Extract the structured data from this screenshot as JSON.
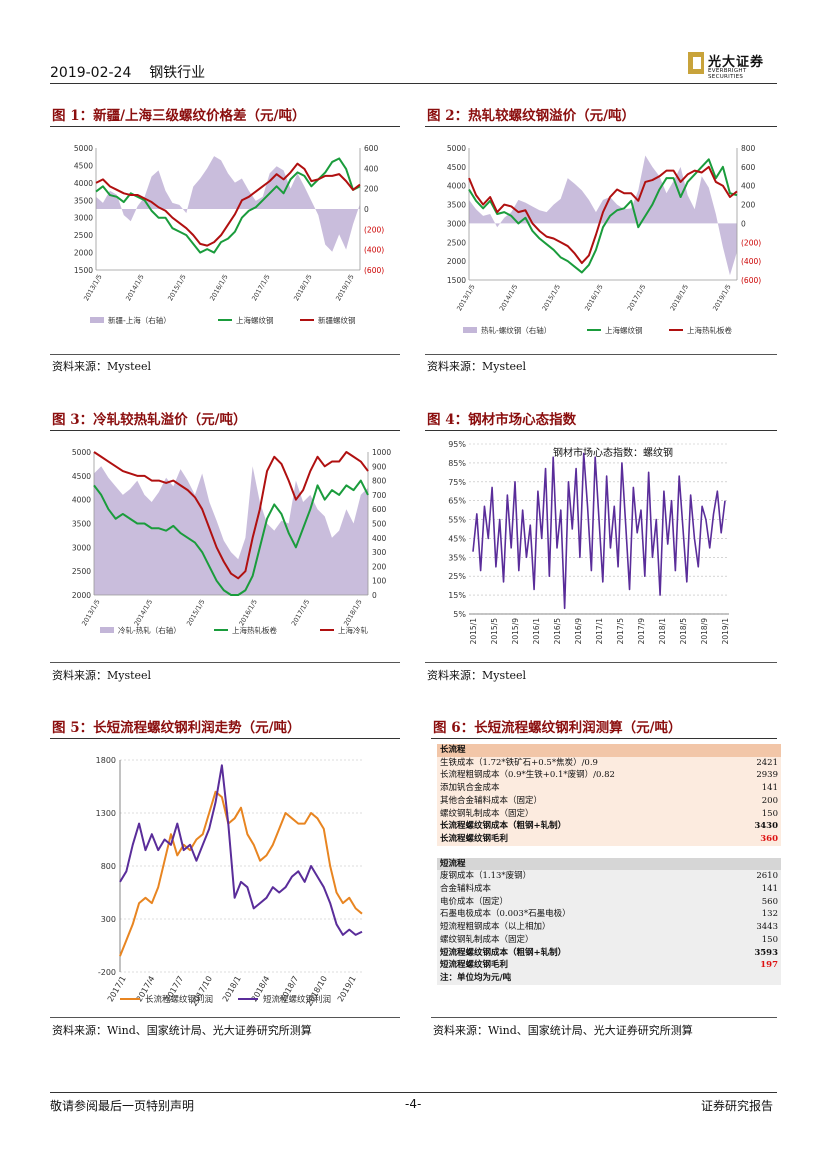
{
  "header": {
    "date": "2019-02-24",
    "industry": "钢铁行业",
    "logo_cn": "光大证券",
    "logo_en": "EVERBRIGHT SECURITIES"
  },
  "colors": {
    "title_red": "#8b0e0e",
    "bar_lavender": "#c3b6d8",
    "line_green": "#1a9c3c",
    "line_darkred": "#b01010",
    "line_orange": "#e88521",
    "line_purple": "#5a2d9a"
  },
  "figures": {
    "fig1": {
      "title": "图 1：新疆/上海三级螺纹价格差（元/吨）",
      "source": "资料来源：Mysteel",
      "chart_data": {
        "type": "line",
        "left_axis_ticks": [
          "5000",
          "4500",
          "4000",
          "3500",
          "3000",
          "2500",
          "2000",
          "1500"
        ],
        "right_axis_ticks": [
          "600",
          "400",
          "200",
          "0",
          "(200)",
          "(400)",
          "(600)"
        ],
        "x_ticks": [
          "2013/1/5",
          "2014/1/5",
          "2015/1/5",
          "2016/1/5",
          "2017/1/5",
          "2018/1/5",
          "2019/1/5"
        ],
        "ylim_left": [
          1500,
          5000
        ],
        "ylim_right": [
          -600,
          600
        ],
        "legend": [
          "新疆-上海（右轴）",
          "上海螺纹钢",
          "新疆螺纹钢"
        ],
        "series": [
          {
            "name": "新疆-上海（右轴）",
            "type": "area",
            "axis": "right",
            "values": [
              120,
              60,
              180,
              140,
              -60,
              -120,
              30,
              120,
              320,
              380,
              180,
              60,
              40,
              -40,
              220,
              300,
              400,
              520,
              480,
              350,
              260,
              300,
              180,
              80,
              120,
              350,
              420,
              380,
              200,
              350,
              220,
              80,
              -60,
              -350,
              -420,
              -250,
              -400,
              -150,
              50
            ]
          },
          {
            "name": "上海螺纹钢",
            "type": "line",
            "axis": "left",
            "values": [
              3750,
              3900,
              3650,
              3600,
              3450,
              3700,
              3600,
              3500,
              3200,
              3000,
              3000,
              2700,
              2600,
              2500,
              2250,
              2000,
              2100,
              2000,
              2300,
              2400,
              2600,
              3000,
              3200,
              3300,
              3500,
              3700,
              3900,
              3700,
              4100,
              4300,
              4200,
              3900,
              4100,
              4300,
              4600,
              4700,
              4400,
              3800,
              3900
            ]
          },
          {
            "name": "新疆螺纹钢",
            "type": "line",
            "axis": "left",
            "values": [
              4000,
              4100,
              3900,
              3800,
              3700,
              3650,
              3650,
              3550,
              3450,
              3300,
              3200,
              3000,
              2850,
              2700,
              2500,
              2250,
              2200,
              2300,
              2500,
              2800,
              3100,
              3500,
              3600,
              3750,
              3900,
              4050,
              4250,
              4100,
              4300,
              4550,
              4400,
              4050,
              4100,
              4200,
              4200,
              4250,
              4050,
              3800,
              3950
            ]
          }
        ]
      }
    },
    "fig2": {
      "title": "图 2：热轧较螺纹钢溢价（元/吨）",
      "source": "资料来源：Mysteel",
      "chart_data": {
        "type": "line",
        "left_axis_ticks": [
          "5000",
          "4500",
          "4000",
          "3500",
          "3000",
          "2500",
          "2000",
          "1500"
        ],
        "right_axis_ticks": [
          "800",
          "600",
          "400",
          "200",
          "0",
          "(200)",
          "(400)",
          "(600)"
        ],
        "x_ticks": [
          "2013/1/5",
          "2014/1/5",
          "2015/1/5",
          "2016/1/5",
          "2017/1/5",
          "2018/1/5",
          "2019/1/5"
        ],
        "ylim_left": [
          1500,
          5000
        ],
        "ylim_right": [
          -600,
          800
        ],
        "legend": [
          "热轧-螺纹钢（右轴）",
          "上海螺纹钢",
          "上海热轧板卷"
        ],
        "series": [
          {
            "name": "热轧-螺纹钢（右轴）",
            "type": "area",
            "axis": "right",
            "values": [
              250,
              150,
              80,
              100,
              -40,
              60,
              120,
              250,
              220,
              180,
              140,
              120,
              200,
              260,
              480,
              420,
              350,
              250,
              120,
              250,
              280,
              200,
              150,
              160,
              350,
              720,
              600,
              500,
              320,
              450,
              600,
              300,
              150,
              500,
              380,
              100,
              -250,
              -550,
              -300
            ]
          },
          {
            "name": "上海螺纹钢",
            "type": "line",
            "axis": "left",
            "values": [
              3900,
              3600,
              3400,
              3600,
              3250,
              3300,
              3200,
              3000,
              3150,
              2800,
              2600,
              2450,
              2300,
              2100,
              2000,
              1850,
              1700,
              1900,
              2300,
              2900,
              3200,
              3350,
              3400,
              3600,
              2900,
              3200,
              3500,
              3900,
              4200,
              4200,
              3700,
              4100,
              4300,
              4500,
              4700,
              4200,
              4500,
              3800,
              3750
            ]
          },
          {
            "name": "上海热轧板卷",
            "type": "line",
            "axis": "left",
            "values": [
              4200,
              3750,
              3500,
              3700,
              3300,
              3500,
              3450,
              3300,
              3350,
              3000,
              2800,
              2650,
              2600,
              2500,
              2400,
              2200,
              1950,
              2150,
              2700,
              3300,
              3700,
              3900,
              3800,
              3800,
              3600,
              4100,
              4150,
              4250,
              4400,
              4400,
              4100,
              4300,
              4400,
              4350,
              4500,
              4100,
              4000,
              3700,
              3850
            ]
          }
        ]
      }
    },
    "fig3": {
      "title": "图 3：冷轧较热轧溢价（元/吨）",
      "source": "资料来源：Mysteel",
      "chart_data": {
        "type": "line",
        "left_axis_ticks": [
          "5000",
          "4500",
          "4000",
          "3500",
          "3000",
          "2500",
          "2000"
        ],
        "right_axis_ticks": [
          "1000",
          "900",
          "800",
          "700",
          "600",
          "500",
          "400",
          "300",
          "200",
          "100",
          "0"
        ],
        "x_ticks": [
          "2013/1/5",
          "2014/1/5",
          "2015/1/5",
          "2016/1/5",
          "2017/1/5",
          "2018/1/5"
        ],
        "ylim_left": [
          2000,
          5000
        ],
        "ylim_right": [
          0,
          1000
        ],
        "legend": [
          "冷轧-热轧（右轴）",
          "上海热轧板卷",
          "上海冷轧"
        ],
        "series": [
          {
            "name": "冷轧-热轧（右轴）",
            "type": "area",
            "axis": "right",
            "values": [
              850,
              900,
              820,
              760,
              700,
              740,
              800,
              700,
              650,
              720,
              820,
              760,
              880,
              800,
              700,
              850,
              650,
              520,
              380,
              300,
              250,
              400,
              900,
              650,
              500,
              450,
              520,
              500,
              800,
              650,
              700,
              600,
              550,
              400,
              450,
              600,
              500,
              700,
              750
            ]
          },
          {
            "name": "上海热轧板卷",
            "type": "line",
            "axis": "left",
            "values": [
              4300,
              4100,
              3800,
              3600,
              3700,
              3600,
              3500,
              3500,
              3400,
              3400,
              3350,
              3450,
              3300,
              3200,
              3100,
              2900,
              2600,
              2300,
              2100,
              2000,
              2000,
              2100,
              2400,
              3000,
              3600,
              3900,
              3700,
              3300,
              3000,
              3400,
              3800,
              4300,
              4000,
              4200,
              4100,
              4300,
              4200,
              4400,
              4100
            ]
          },
          {
            "name": "上海冷轧",
            "type": "line",
            "axis": "left",
            "values": [
              5000,
              4900,
              4800,
              4700,
              4600,
              4550,
              4500,
              4500,
              4400,
              4400,
              4350,
              4400,
              4300,
              4200,
              4050,
              3800,
              3400,
              3000,
              2700,
              2450,
              2350,
              2500,
              3200,
              3800,
              4600,
              4900,
              4750,
              4400,
              4000,
              4200,
              4600,
              4900,
              4700,
              4800,
              4800,
              5000,
              4900,
              4800,
              4600
            ]
          }
        ]
      }
    },
    "fig4": {
      "title": "图 4：钢材市场心态指数",
      "source": "资料来源：Mysteel",
      "chart_data": {
        "type": "line",
        "title": "钢材市场心态指数：螺纹钢",
        "y_ticks": [
          "95%",
          "85%",
          "75%",
          "65%",
          "55%",
          "45%",
          "35%",
          "25%",
          "15%",
          "5%"
        ],
        "ylim": [
          5,
          95
        ],
        "x_ticks": [
          "2015/1",
          "2015/5",
          "2015/9",
          "2016/1",
          "2016/5",
          "2016/9",
          "2017/1",
          "2017/5",
          "2017/9",
          "2018/1",
          "2018/5",
          "2018/9",
          "2019/1"
        ],
        "series": [
          {
            "name": "螺纹钢",
            "values": [
              38,
              58,
              28,
              62,
              45,
              72,
              30,
              55,
              22,
              68,
              40,
              75,
              28,
              60,
              35,
              52,
              18,
              70,
              45,
              82,
              25,
              88,
              40,
              60,
              8,
              75,
              50,
              82,
              35,
              90,
              62,
              28,
              88,
              55,
              22,
              78,
              40,
              62,
              30,
              85,
              52,
              18,
              72,
              48,
              60,
              25,
              80,
              35,
              55,
              15,
              70,
              42,
              65,
              28,
              78,
              50,
              22,
              68,
              45,
              30,
              62,
              55,
              40,
              58,
              70,
              48,
              65
            ]
          }
        ]
      }
    },
    "fig5": {
      "title": "图 5：长短流程螺纹钢利润走势（元/吨）",
      "source": "资料来源：Wind、国家统计局、光大证券研究所测算",
      "chart_data": {
        "type": "line",
        "y_ticks": [
          "1800",
          "1300",
          "800",
          "300",
          "-200"
        ],
        "ylim": [
          -200,
          1800
        ],
        "x_ticks": [
          "2017/1",
          "2017/4",
          "2017/7",
          "2017/10",
          "2018/1",
          "2018/4",
          "2018/7",
          "2018/10",
          "2019/1"
        ],
        "legend": [
          "长流程螺纹钢利润",
          "短流程螺纹钢利润"
        ],
        "series": [
          {
            "name": "长流程螺纹钢利润",
            "values": [
              -50,
              100,
              250,
              450,
              500,
              450,
              600,
              850,
              1100,
              900,
              1000,
              950,
              1050,
              1100,
              1300,
              1500,
              1450,
              1200,
              1250,
              1350,
              1100,
              1000,
              850,
              900,
              1000,
              1150,
              1300,
              1250,
              1200,
              1200,
              1300,
              1250,
              1150,
              800,
              550,
              450,
              500,
              400,
              350
            ]
          },
          {
            "name": "短流程螺纹钢利润",
            "values": [
              650,
              750,
              1000,
              1200,
              950,
              1100,
              950,
              1050,
              1000,
              1200,
              950,
              1000,
              850,
              1000,
              1150,
              1400,
              1750,
              1200,
              500,
              650,
              600,
              400,
              450,
              500,
              600,
              550,
              600,
              700,
              750,
              650,
              800,
              700,
              600,
              450,
              250,
              150,
              200,
              150,
              180
            ]
          }
        ]
      }
    },
    "fig6": {
      "title": "图 6：长短流程螺纹钢利润测算（元/吨）",
      "source": "资料来源：Wind、国家统计局、光大证券研究所测算",
      "long": {
        "heading": "长流程",
        "rows": [
          {
            "label": "生铁成本（1.72*铁矿石+0.5*焦炭）/0.9",
            "value": "2421"
          },
          {
            "label": "长流程粗钢成本（0.9*生铁+0.1*废钢）/0.82",
            "value": "2939"
          },
          {
            "label": "添加钒合金成本",
            "value": "141"
          },
          {
            "label": "其他合金辅料成本（固定）",
            "value": "200"
          },
          {
            "label": "螺纹钢轧制成本（固定）",
            "value": "150"
          }
        ],
        "total_label": "长流程螺纹钢成本（粗钢+轧制）",
        "total_value": "3430",
        "profit_label": "长流程螺纹钢毛利",
        "profit_value": "360"
      },
      "short": {
        "heading": "短流程",
        "rows": [
          {
            "label": "废钢成本（1.13*废钢）",
            "value": "2610"
          },
          {
            "label": "合金辅料成本",
            "value": "141"
          },
          {
            "label": "电价成本（固定）",
            "value": "560"
          },
          {
            "label": "石墨电极成本（0.003*石墨电极）",
            "value": "132"
          },
          {
            "label": "短流程粗钢成本（以上相加）",
            "value": "3443"
          },
          {
            "label": "螺纹钢轧制成本（固定）",
            "value": "150"
          }
        ],
        "total_label": "短流程螺纹钢成本（粗钢+轧制）",
        "total_value": "3593",
        "profit_label": "短流程螺纹钢毛利",
        "profit_value": "197"
      },
      "note": "注：单位均为元/吨"
    }
  },
  "footer": {
    "left": "敬请参阅最后一页特别声明",
    "center": "-4-",
    "right": "证券研究报告"
  }
}
